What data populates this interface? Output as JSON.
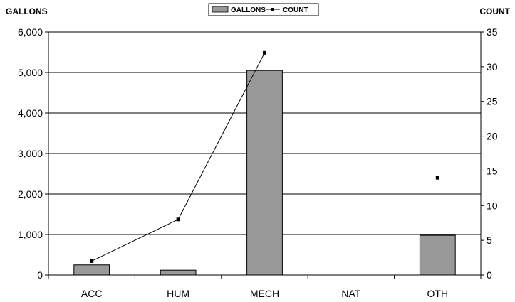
{
  "chart_data": {
    "type": "bar",
    "categories": [
      "ACC",
      "HUM",
      "MECH",
      "NAT",
      "OTH"
    ],
    "series": [
      {
        "name": "GALLONS",
        "type": "bar",
        "axis": "left",
        "values": [
          250,
          120,
          5050,
          0,
          980
        ],
        "color": "#999999"
      },
      {
        "name": "COUNT",
        "type": "line",
        "axis": "right",
        "values": [
          2,
          8,
          32,
          null,
          14
        ],
        "color": "#000000"
      }
    ],
    "ylabel_left": "GALLONS",
    "ylabel_right": "COUNT",
    "ylim_left": [
      0,
      6000
    ],
    "ylim_right": [
      0,
      35
    ],
    "yticks_left": [
      "0",
      "1,000",
      "2,000",
      "3,000",
      "4,000",
      "5,000",
      "6,000"
    ],
    "yticks_right": [
      "0",
      "5",
      "10",
      "15",
      "20",
      "25",
      "30",
      "35"
    ],
    "grid": true,
    "legend_position": "top-center"
  }
}
